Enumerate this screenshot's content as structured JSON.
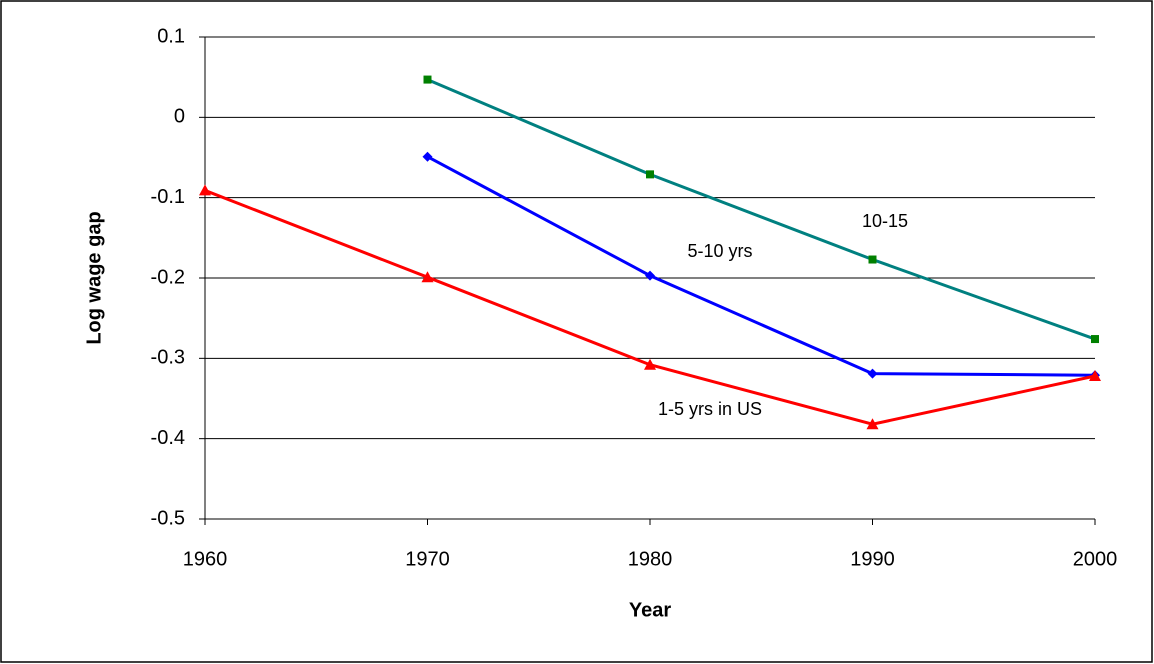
{
  "chart_data": {
    "type": "line",
    "x_label": "Year",
    "y_label": "Log wage gap",
    "xlim": [
      1960,
      2000
    ],
    "xticks": [
      1960,
      1970,
      1980,
      1990,
      2000
    ],
    "ylim": [
      -0.5,
      0.1
    ],
    "yticks": [
      -0.5,
      -0.4,
      -0.3,
      -0.2,
      -0.1,
      0,
      0.1
    ],
    "grid": true,
    "x": [
      1960,
      1970,
      1980,
      1990,
      2000
    ],
    "series": [
      {
        "name": "10-15",
        "color": "#008080",
        "marker_color": "#008000",
        "marker": "square",
        "values": [
          null,
          0.047,
          -0.071,
          -0.177,
          -0.276
        ]
      },
      {
        "name": "5-10 yrs",
        "color": "#0000ff",
        "marker_color": "#0000ff",
        "marker": "diamond",
        "values": [
          null,
          -0.049,
          -0.197,
          -0.319,
          -0.321
        ]
      },
      {
        "name": "1-5 yrs in US",
        "color": "#ff0000",
        "marker_color": "#ff0000",
        "marker": "triangle",
        "values": [
          -0.091,
          -0.199,
          -0.308,
          -0.382,
          -0.322
        ]
      }
    ]
  }
}
